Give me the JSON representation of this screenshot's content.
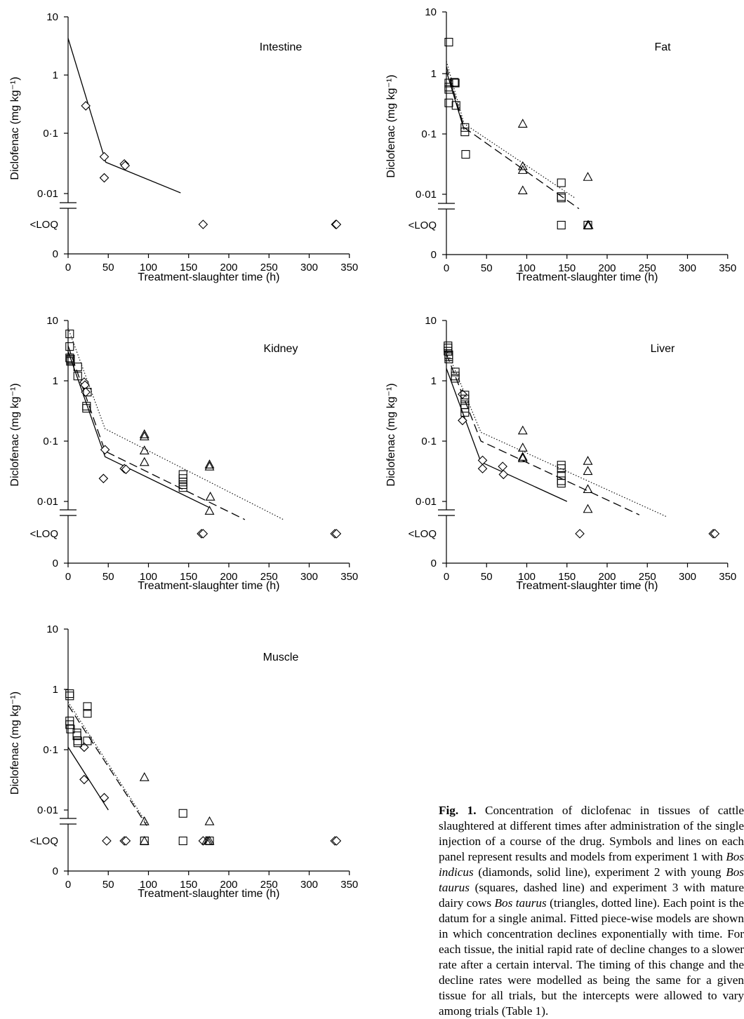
{
  "figure": {
    "caption_label": "Fig. 1.",
    "caption_parts": [
      {
        "t": " Concentration of diclofenac in tissues of cattle slaughtered at different times after administration of the single injection of a course of the drug. Symbols and lines on each panel represent results and models from experiment 1 with ",
        "i": false
      },
      {
        "t": "Bos indicus",
        "i": true
      },
      {
        "t": " (diamonds, solid line), experiment 2 with young ",
        "i": false
      },
      {
        "t": "Bos taurus",
        "i": true
      },
      {
        "t": " (squares, dashed line) and experiment 3 with mature dairy cows ",
        "i": false
      },
      {
        "t": "Bos taurus",
        "i": true
      },
      {
        "t": " (triangles, dotted line). Each point is the datum for a single animal. Fitted piece-wise models are shown in which concentration declines exponentially with time. For each tissue, the initial rapid rate of decline changes to a slower rate after a certain interval. The timing of this change and the decline rates were modelled as being the same for a given tissue for all trials, but the intercepts were allowed to vary among trials (Table 1).",
        "i": false
      }
    ]
  },
  "chart_data": [
    {
      "type": "scatter",
      "title": "Intestine",
      "xlabel": "Treatment-slaughter time (h)",
      "ylabel": "Diclofenac (mg kg⁻¹)",
      "y_scale": "log with <LOQ and 0 categories",
      "xlim": [
        0,
        350
      ],
      "x_ticks": [
        "0",
        "50",
        "100",
        "150",
        "200",
        "250",
        "300",
        "350"
      ],
      "y_ticks": [
        "10",
        "1",
        "0·1",
        "0·01",
        "<LOQ",
        "0"
      ],
      "series": [
        {
          "marker": "diamond",
          "points": [
            [
              22,
              0.3
            ],
            [
              45,
              0.041
            ],
            [
              45,
              0.018
            ],
            [
              70,
              0.031
            ],
            [
              71,
              0.029
            ]
          ],
          "loq_x": [
            168,
            333,
            334
          ]
        }
      ],
      "models": [
        {
          "style": "solid",
          "points": [
            [
              0,
              4.2
            ],
            [
              47,
              0.033
            ],
            [
              140,
              0.01
            ]
          ]
        }
      ]
    },
    {
      "type": "scatter",
      "title": "Fat",
      "xlabel": "Treatment-slaughter time (h)",
      "ylabel": "Diclofenac (mg kg⁻¹)",
      "y_scale": "log with <LOQ and 0 categories",
      "xlim": [
        0,
        350
      ],
      "x_ticks": [
        "0",
        "50",
        "100",
        "150",
        "200",
        "250",
        "300",
        "350"
      ],
      "y_ticks": [
        "10",
        "1",
        "0·1",
        "0·01",
        "<LOQ",
        "0"
      ],
      "series": [
        {
          "marker": "square",
          "points": [
            [
              3,
              3.3
            ],
            [
              3,
              0.7
            ],
            [
              3,
              0.6
            ],
            [
              3,
              0.55
            ],
            [
              3,
              0.33
            ],
            [
              10,
              0.72
            ],
            [
              11,
              0.7
            ],
            [
              12,
              0.3
            ],
            [
              23,
              0.13
            ],
            [
              23,
              0.11
            ],
            [
              24,
              0.047
            ],
            [
              143,
              0.016
            ],
            [
              143,
              0.0095
            ],
            [
              143,
              0.009
            ]
          ],
          "loq_x": [
            143,
            176
          ]
        },
        {
          "marker": "triangle",
          "points": [
            [
              95,
              0.15
            ],
            [
              95,
              0.03
            ],
            [
              95,
              0.026
            ],
            [
              95,
              0.012
            ],
            [
              176,
              0.02
            ]
          ],
          "loq_x": [
            176,
            177
          ]
        }
      ],
      "models": [
        {
          "style": "solid",
          "points": [
            [
              0,
              1.1
            ],
            [
              22,
              0.12
            ]
          ]
        },
        {
          "style": "dashed",
          "points": [
            [
              0,
              1.3
            ],
            [
              22,
              0.13
            ],
            [
              165,
              0.006
            ]
          ]
        },
        {
          "style": "dotted",
          "points": [
            [
              0,
              1.6
            ],
            [
              22,
              0.15
            ],
            [
              160,
              0.009
            ]
          ]
        }
      ]
    },
    {
      "type": "scatter",
      "title": "Kidney",
      "xlabel": "Treatment-slaughter time (h)",
      "ylabel": "Diclofenac (mg kg⁻¹)",
      "y_scale": "log with <LOQ and 0 categories",
      "xlim": [
        0,
        350
      ],
      "x_ticks": [
        "0",
        "50",
        "100",
        "150",
        "200",
        "250",
        "300",
        "350"
      ],
      "y_ticks": [
        "10",
        "1",
        "0·1",
        "0·01",
        "<LOQ",
        "0"
      ],
      "series": [
        {
          "marker": "diamond",
          "points": [
            [
              20,
              0.95
            ],
            [
              21,
              0.85
            ],
            [
              22,
              0.65
            ],
            [
              46,
              0.072
            ],
            [
              44,
              0.024
            ],
            [
              70,
              0.035
            ],
            [
              72,
              0.034
            ]
          ],
          "loq_x": [
            166,
            168,
            332,
            334
          ]
        },
        {
          "marker": "square",
          "points": [
            [
              2,
              6
            ],
            [
              2,
              3.7
            ],
            [
              2,
              2.4
            ],
            [
              3,
              2.3
            ],
            [
              3,
              2.2
            ],
            [
              3,
              2.1
            ],
            [
              12,
              1.7
            ],
            [
              12,
              1.2
            ],
            [
              24,
              0.65
            ],
            [
              23,
              0.38
            ],
            [
              23,
              0.35
            ],
            [
              143,
              0.028
            ],
            [
              143,
              0.024
            ],
            [
              143,
              0.021
            ],
            [
              143,
              0.019
            ],
            [
              143,
              0.017
            ]
          ],
          "loq_x": []
        },
        {
          "marker": "triangle",
          "points": [
            [
              95,
              0.13
            ],
            [
              95,
              0.12
            ],
            [
              95,
              0.07
            ],
            [
              95,
              0.045
            ],
            [
              176,
              0.041
            ],
            [
              176,
              0.038
            ],
            [
              177,
              0.012
            ],
            [
              176,
              0.007
            ]
          ],
          "loq_x": []
        }
      ],
      "models": [
        {
          "style": "solid",
          "points": [
            [
              0,
              3.1
            ],
            [
              46,
              0.055
            ],
            [
              175,
              0.008
            ]
          ]
        },
        {
          "style": "dashed",
          "points": [
            [
              0,
              3.8
            ],
            [
              46,
              0.068
            ],
            [
              220,
              0.005
            ]
          ]
        },
        {
          "style": "dotted",
          "points": [
            [
              0,
              7.5
            ],
            [
              46,
              0.16
            ],
            [
              268,
              0.005
            ]
          ]
        }
      ]
    },
    {
      "type": "scatter",
      "title": "Liver",
      "xlabel": "Treatment-slaughter time (h)",
      "ylabel": "Diclofenac (mg kg⁻¹)",
      "y_scale": "log with <LOQ and 0 categories",
      "xlim": [
        0,
        350
      ],
      "x_ticks": [
        "0",
        "50",
        "100",
        "150",
        "200",
        "250",
        "300",
        "350"
      ],
      "y_ticks": [
        "10",
        "1",
        "0·1",
        "0·01",
        "<LOQ",
        "0"
      ],
      "series": [
        {
          "marker": "diamond",
          "points": [
            [
              20,
              0.6
            ],
            [
              20,
              0.22
            ],
            [
              45,
              0.048
            ],
            [
              45,
              0.035
            ],
            [
              70,
              0.038
            ],
            [
              71,
              0.028
            ]
          ],
          "loq_x": [
            166,
            332,
            334
          ]
        },
        {
          "marker": "square",
          "points": [
            [
              2,
              3.8
            ],
            [
              2,
              3.5
            ],
            [
              2,
              3.1
            ],
            [
              3,
              2.7
            ],
            [
              3,
              2.5
            ],
            [
              3,
              2.3
            ],
            [
              11,
              1.4
            ],
            [
              11,
              1.2
            ],
            [
              11,
              1.1
            ],
            [
              23,
              0.58
            ],
            [
              23,
              0.5
            ],
            [
              23,
              0.4
            ],
            [
              23,
              0.35
            ],
            [
              23,
              0.3
            ],
            [
              143,
              0.04
            ],
            [
              143,
              0.035
            ],
            [
              143,
              0.027
            ],
            [
              143,
              0.022
            ],
            [
              143,
              0.02
            ]
          ],
          "loq_x": []
        },
        {
          "marker": "triangle",
          "points": [
            [
              95,
              0.15
            ],
            [
              95,
              0.078
            ],
            [
              95,
              0.055
            ],
            [
              95,
              0.052
            ],
            [
              176,
              0.047
            ],
            [
              176,
              0.032
            ],
            [
              176,
              0.016
            ],
            [
              176,
              0.0075
            ]
          ],
          "loq_x": []
        }
      ],
      "models": [
        {
          "style": "solid",
          "points": [
            [
              0,
              1.6
            ],
            [
              43,
              0.045
            ],
            [
              150,
              0.01
            ]
          ]
        },
        {
          "style": "dashed",
          "points": [
            [
              0,
              2.8
            ],
            [
              43,
              0.1
            ],
            [
              240,
              0.006
            ]
          ]
        },
        {
          "style": "dotted",
          "points": [
            [
              0,
              3.3
            ],
            [
              43,
              0.14
            ],
            [
              275,
              0.0055
            ]
          ]
        }
      ]
    },
    {
      "type": "scatter",
      "title": "Muscle",
      "xlabel": "Treatment-slaughter time (h)",
      "ylabel": "Diclofenac (mg kg⁻¹)",
      "y_scale": "log with <LOQ and 0 categories",
      "xlim": [
        0,
        350
      ],
      "x_ticks": [
        "0",
        "50",
        "100",
        "150",
        "200",
        "250",
        "300",
        "350"
      ],
      "y_ticks": [
        "10",
        "1",
        "0·1",
        "0·01",
        "<LOQ",
        "0"
      ],
      "series": [
        {
          "marker": "diamond",
          "points": [
            [
              20,
              0.11
            ],
            [
              20,
              0.032
            ],
            [
              45,
              0.016
            ]
          ],
          "loq_x": [
            48,
            70,
            72,
            168,
            332,
            334
          ]
        },
        {
          "marker": "square",
          "points": [
            [
              2,
              0.85
            ],
            [
              2,
              0.78
            ],
            [
              2,
              0.3
            ],
            [
              2,
              0.26
            ],
            [
              3,
              0.22
            ],
            [
              11,
              0.19
            ],
            [
              11,
              0.17
            ],
            [
              12,
              0.14
            ],
            [
              12,
              0.13
            ],
            [
              24,
              0.52
            ],
            [
              24,
              0.4
            ],
            [
              24,
              0.14
            ],
            [
              143,
              0.0088
            ]
          ],
          "loq_x": [
            95,
            143,
            176
          ]
        },
        {
          "marker": "triangle",
          "points": [
            [
              95,
              0.035
            ],
            [
              95,
              0.0065
            ],
            [
              176,
              0.0065
            ]
          ],
          "loq_x": [
            95,
            172,
            174,
            176
          ]
        }
      ],
      "models": [
        {
          "style": "solid",
          "points": [
            [
              0,
              0.11
            ],
            [
              50,
              0.01
            ]
          ]
        },
        {
          "style": "dashed",
          "points": [
            [
              0,
              0.55
            ],
            [
              98,
              0.0055
            ]
          ]
        },
        {
          "style": "dotted",
          "points": [
            [
              0,
              0.62
            ],
            [
              98,
              0.006
            ]
          ]
        }
      ]
    }
  ]
}
